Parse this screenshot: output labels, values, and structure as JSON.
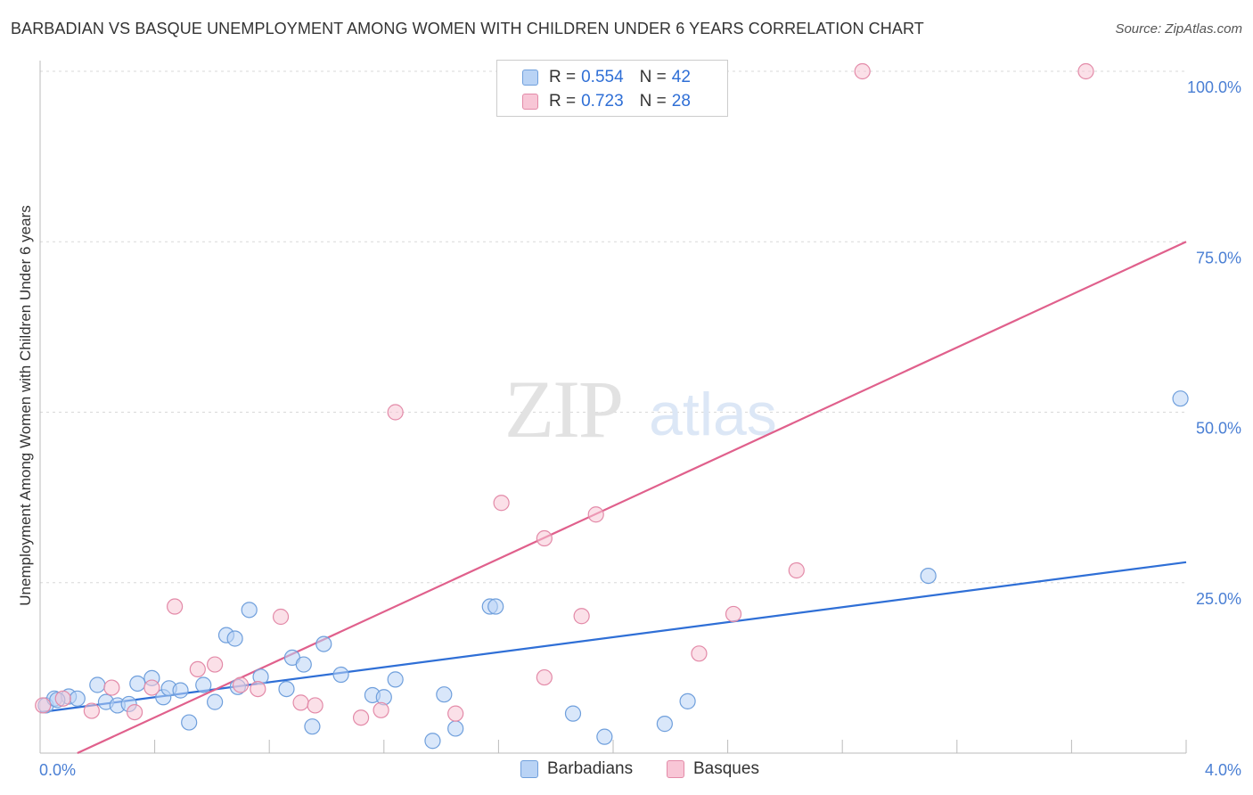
{
  "header": {
    "title": "BARBADIAN VS BASQUE UNEMPLOYMENT AMONG WOMEN WITH CHILDREN UNDER 6 YEARS CORRELATION CHART",
    "source": "Source: ZipAtlas.com"
  },
  "watermark": {
    "zip": "ZIP",
    "atlas": "atlas"
  },
  "legend": {
    "r_label": "R =",
    "n_label": "N =",
    "barbadians": {
      "r": "0.554",
      "n": "42"
    },
    "basques": {
      "r": "0.723",
      "n": "28"
    }
  },
  "colors": {
    "blue_fill": "#b9d3f5",
    "blue_stroke": "#6f9fdc",
    "blue_line": "#2f6fd6",
    "pink_fill": "#f8c6d6",
    "pink_stroke": "#e38aa8",
    "pink_line": "#e0608c",
    "tick_text": "#4a7fd4",
    "grid": "#d8d8d8"
  },
  "chart_data": {
    "type": "scatter",
    "title": "BARBADIAN VS BASQUE UNEMPLOYMENT AMONG WOMEN WITH CHILDREN UNDER 6 YEARS CORRELATION CHART",
    "xlabel": "",
    "ylabel": "Unemployment Among Women with Children Under 6 years",
    "xlim": [
      0,
      4.0
    ],
    "ylim": [
      0,
      100
    ],
    "x_tick_labels": [
      {
        "value": 0,
        "label": "0.0%"
      },
      {
        "value": 4.0,
        "label": "4.0%"
      }
    ],
    "y_tick_labels": [
      {
        "value": 25,
        "label": "25.0%"
      },
      {
        "value": 50,
        "label": "50.0%"
      },
      {
        "value": 75,
        "label": "75.0%"
      },
      {
        "value": 100,
        "label": "100.0%"
      }
    ],
    "x_minor_ticks": [
      0.4,
      0.8,
      1.2,
      1.6,
      2.0,
      2.4,
      2.8,
      3.2,
      3.6,
      4.0
    ],
    "grid_y": [
      25,
      50,
      75,
      100
    ],
    "series": [
      {
        "name": "Barbadians",
        "color": "blue",
        "points": [
          [
            0.02,
            7.0
          ],
          [
            0.05,
            8.0
          ],
          [
            0.1,
            8.3
          ],
          [
            0.13,
            8.0
          ],
          [
            0.2,
            10.0
          ],
          [
            0.23,
            7.5
          ],
          [
            0.27,
            7.0
          ],
          [
            0.31,
            7.2
          ],
          [
            0.34,
            10.2
          ],
          [
            0.39,
            11.0
          ],
          [
            0.43,
            8.2
          ],
          [
            0.45,
            9.5
          ],
          [
            0.49,
            9.2
          ],
          [
            0.52,
            4.5
          ],
          [
            0.57,
            10.0
          ],
          [
            0.61,
            7.5
          ],
          [
            0.65,
            17.3
          ],
          [
            0.68,
            16.8
          ],
          [
            0.69,
            9.7
          ],
          [
            0.73,
            21.0
          ],
          [
            0.77,
            11.2
          ],
          [
            0.86,
            9.4
          ],
          [
            0.88,
            14.0
          ],
          [
            0.92,
            13.0
          ],
          [
            0.95,
            3.9
          ],
          [
            0.99,
            16.0
          ],
          [
            1.05,
            11.5
          ],
          [
            1.16,
            8.5
          ],
          [
            1.2,
            8.2
          ],
          [
            1.24,
            10.8
          ],
          [
            1.37,
            1.8
          ],
          [
            1.41,
            8.6
          ],
          [
            1.45,
            3.6
          ],
          [
            1.57,
            21.5
          ],
          [
            1.59,
            21.5
          ],
          [
            1.86,
            5.8
          ],
          [
            1.97,
            2.4
          ],
          [
            2.18,
            4.3
          ],
          [
            2.26,
            7.6
          ],
          [
            3.1,
            26.0
          ],
          [
            3.98,
            52.0
          ],
          [
            0.06,
            7.8
          ]
        ],
        "trendline": {
          "x": [
            0.0,
            4.0
          ],
          "y": [
            6.0,
            28.0
          ]
        }
      },
      {
        "name": "Basques",
        "color": "pink",
        "points": [
          [
            0.01,
            7.0
          ],
          [
            0.08,
            8.0
          ],
          [
            0.18,
            6.2
          ],
          [
            0.25,
            9.6
          ],
          [
            0.33,
            6.0
          ],
          [
            0.39,
            9.6
          ],
          [
            0.47,
            21.5
          ],
          [
            0.55,
            12.3
          ],
          [
            0.61,
            13.0
          ],
          [
            0.7,
            10.0
          ],
          [
            0.76,
            9.4
          ],
          [
            0.84,
            20.0
          ],
          [
            0.91,
            7.4
          ],
          [
            0.96,
            7.0
          ],
          [
            1.12,
            5.2
          ],
          [
            1.19,
            6.3
          ],
          [
            1.24,
            50.0
          ],
          [
            1.45,
            5.8
          ],
          [
            1.61,
            36.7
          ],
          [
            1.76,
            11.1
          ],
          [
            1.76,
            31.5
          ],
          [
            1.89,
            20.1
          ],
          [
            1.94,
            35.0
          ],
          [
            2.3,
            14.6
          ],
          [
            2.42,
            20.4
          ],
          [
            2.64,
            26.8
          ],
          [
            2.87,
            100.0
          ],
          [
            3.65,
            100.0
          ]
        ],
        "trendline": {
          "x": [
            0.13,
            4.0
          ],
          "y": [
            0.0,
            75.0
          ]
        }
      }
    ]
  },
  "bottom_legend": {
    "barbadians": "Barbadians",
    "basques": "Basques"
  }
}
